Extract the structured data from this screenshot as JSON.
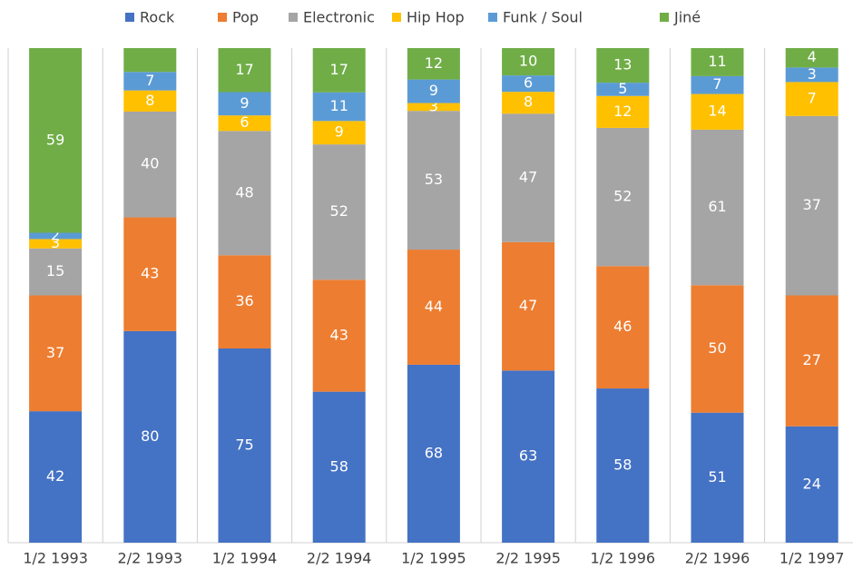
{
  "chart_data": {
    "type": "stacked_bar_100",
    "categories": [
      "1/2 1993",
      "2/2 1993",
      "1/2 1994",
      "2/2 1994",
      "1/2 1995",
      "2/2 1995",
      "1/2 1996",
      "2/2 1996",
      "1/2 1997"
    ],
    "series": [
      {
        "name": "Rock",
        "color": "#4472c4",
        "values": [
          42,
          80,
          75,
          58,
          68,
          63,
          58,
          51,
          24
        ]
      },
      {
        "name": "Pop",
        "color": "#ed7d31",
        "values": [
          37,
          43,
          36,
          43,
          44,
          47,
          46,
          50,
          27
        ]
      },
      {
        "name": "Electronic",
        "color": "#a5a5a5",
        "values": [
          15,
          40,
          48,
          52,
          53,
          47,
          52,
          61,
          37
        ]
      },
      {
        "name": "Hip Hop",
        "color": "#ffc000",
        "values": [
          3,
          8,
          6,
          9,
          3,
          8,
          12,
          14,
          7
        ]
      },
      {
        "name": "Funk / Soul",
        "color": "#5b9bd5",
        "values": [
          2,
          7,
          9,
          11,
          9,
          6,
          5,
          7,
          3
        ]
      },
      {
        "name": "Jiné",
        "color": "#70ad47",
        "values": [
          59,
          9,
          17,
          17,
          12,
          10,
          13,
          11,
          4
        ],
        "value_labels": [
          "59",
          null,
          "17",
          "17",
          "12",
          "10",
          "13",
          "11",
          "4"
        ]
      }
    ],
    "legend": "top"
  }
}
